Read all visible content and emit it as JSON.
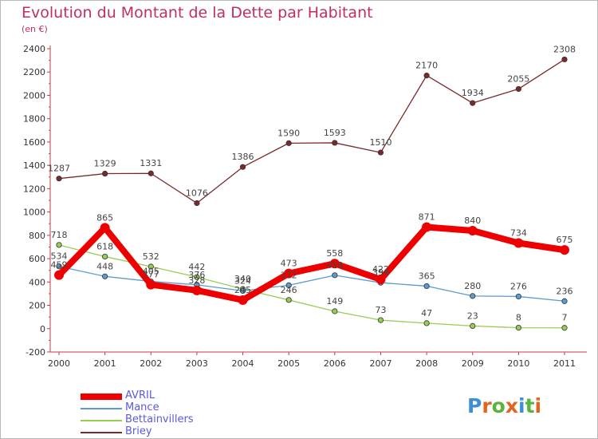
{
  "header": {
    "title": "Evolution du Montant de la Dette par Habitant",
    "subtitle": "(en €)"
  },
  "logo": {
    "text": "Proxiti",
    "letter_colors": [
      "#3e8fd8",
      "#e2641e",
      "#58b43c",
      "#e2641e",
      "#3e8fd8",
      "#58b43c",
      "#e2641e"
    ]
  },
  "chart_data": {
    "type": "line",
    "x": [
      "2000",
      "2001",
      "2002",
      "2003",
      "2004",
      "2005",
      "2006",
      "2007",
      "2008",
      "2009",
      "2010",
      "2011"
    ],
    "ylim": [
      -200,
      2400
    ],
    "yticks": [
      "-200",
      "0",
      "200",
      "400",
      "600",
      "800",
      "1000",
      "1200",
      "1400",
      "1600",
      "1800",
      "2000",
      "2200",
      "2400"
    ],
    "grid": false,
    "legend_position": "bottom-left",
    "series": [
      {
        "name": "AVRIL",
        "color": "#ee0000",
        "values": [
          459,
          865,
          377,
          328,
          245,
          473,
          558,
          422,
          871,
          840,
          734,
          675
        ],
        "labels": [
          "459",
          "865",
          "377",
          "328",
          "245",
          "473",
          "558",
          "422",
          "871",
          "840",
          "734",
          "675"
        ]
      },
      {
        "name": "Mance",
        "color": "#5b9bd0",
        "values": [
          534,
          448,
          405,
          376,
          324,
          372,
          458,
          394,
          365,
          280,
          276,
          236
        ],
        "labels": [
          "534",
          "448",
          "405",
          "376",
          "324",
          "372",
          "458",
          "394",
          "365",
          "280",
          "276",
          "236"
        ]
      },
      {
        "name": "Bettainvillers",
        "color": "#99cc55",
        "values": [
          718,
          618,
          532,
          442,
          340,
          246,
          149,
          73,
          47,
          23,
          8,
          7
        ],
        "labels": [
          "718",
          "618",
          "532",
          "442",
          "340",
          "246",
          "149",
          "73",
          "47",
          "23",
          "8",
          "7"
        ]
      },
      {
        "name": "Briey",
        "color": "#7a2a2a",
        "values": [
          1287,
          1329,
          1331,
          1076,
          1386,
          1590,
          1593,
          1510,
          2170,
          1934,
          2055,
          2308
        ],
        "labels": [
          "1287",
          "1329",
          "1331",
          "1076",
          "1386",
          "1590",
          "1593",
          "1510",
          "2170",
          "1934",
          "2055",
          "2308"
        ]
      }
    ]
  }
}
